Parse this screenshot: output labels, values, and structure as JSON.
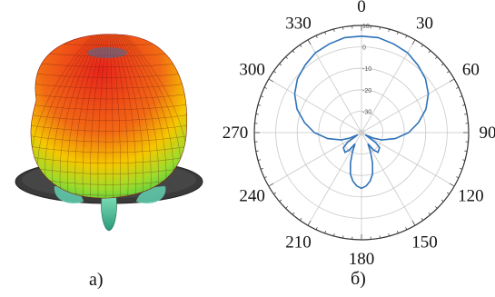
{
  "panels": {
    "a_label": "а)",
    "b_label": "б)"
  },
  "colors": {
    "pattern_line": "#2f72b8",
    "grid": "#c9c9c9",
    "axis": "#333333",
    "sphere_hot": "#e8231b",
    "sphere_mid": "#f5c800",
    "sphere_cool": "#38c84a",
    "ground_plane": "#3a3a3a",
    "ground_edge": "#5fc8a8"
  },
  "chart_data": {
    "type": "polar",
    "angle_unit": "deg",
    "angle_direction": "clockwise",
    "zero_at": "top",
    "r_range_db": [
      -40,
      10
    ],
    "angle_ticks": [
      "0",
      "30",
      "60",
      "90",
      "120",
      "150",
      "180",
      "210",
      "240",
      "270",
      "300",
      "330"
    ],
    "radial_ticks": [
      "10",
      "0",
      "-10",
      "-20",
      "-30"
    ],
    "series": [
      {
        "theta": [
          0,
          10,
          20,
          30,
          40,
          50,
          60,
          70,
          80,
          90,
          100,
          110,
          115,
          120,
          125,
          130,
          140,
          145,
          150,
          155,
          160,
          165,
          170,
          175,
          180,
          185,
          190,
          195,
          200,
          205,
          210,
          215,
          220,
          230,
          235,
          240,
          245,
          250,
          260,
          270,
          280,
          290,
          300,
          310,
          320,
          330,
          340,
          350,
          360
        ],
        "r_db": [
          5,
          5,
          4,
          3,
          1,
          -1,
          -4,
          -8,
          -13,
          -18,
          -24,
          -30,
          -34,
          -38,
          -32,
          -29,
          -28,
          -30,
          -34,
          -30,
          -25,
          -20,
          -17,
          -15,
          -14,
          -15,
          -17,
          -20,
          -25,
          -30,
          -34,
          -30,
          -28,
          -29,
          -32,
          -38,
          -34,
          -30,
          -24,
          -18,
          -13,
          -8,
          -4,
          -1,
          1,
          3,
          4,
          5,
          5
        ]
      }
    ]
  }
}
